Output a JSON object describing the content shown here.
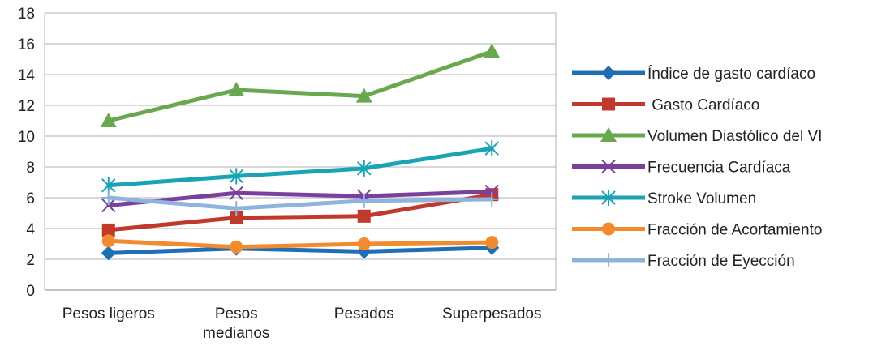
{
  "chart_data": {
    "type": "line",
    "categories": [
      [
        "Pesos ligeros"
      ],
      [
        "Pesos",
        "medianos"
      ],
      [
        "Pesados"
      ],
      [
        "Superpesados"
      ]
    ],
    "ylim": [
      0,
      18
    ],
    "yticks": [
      "0",
      "2",
      "4",
      "6",
      "8",
      "10",
      "12",
      "14",
      "16",
      "18"
    ],
    "grid": true,
    "legend_position": "right",
    "series": [
      {
        "name": "Índice de gasto cardíaco",
        "color": "#1f6fb4",
        "marker": "diamond",
        "values": [
          2.4,
          2.7,
          2.5,
          2.75
        ]
      },
      {
        "name": " Gasto Cardíaco",
        "color": "#c0392b",
        "marker": "square",
        "values": [
          3.9,
          4.7,
          4.8,
          6.2
        ]
      },
      {
        "name": "Volumen Diastólico del VI",
        "color": "#6aa84f",
        "marker": "triangle",
        "values": [
          11.0,
          13.0,
          12.6,
          15.5
        ]
      },
      {
        "name": "Frecuencia Cardíaca",
        "color": "#7b3f9e",
        "marker": "x",
        "values": [
          5.5,
          6.3,
          6.1,
          6.4
        ]
      },
      {
        "name": "Stroke Volumen",
        "color": "#1aa3b5",
        "marker": "asterisk",
        "values": [
          6.8,
          7.4,
          7.9,
          9.2
        ]
      },
      {
        "name": "Fracción de Acortamiento",
        "color": "#f28a30",
        "marker": "circle",
        "values": [
          3.2,
          2.8,
          3.0,
          3.1
        ]
      },
      {
        "name": "Fracción de Eyección",
        "color": "#8fb3dc",
        "marker": "plus",
        "values": [
          6.0,
          5.3,
          5.8,
          5.9
        ]
      }
    ]
  }
}
